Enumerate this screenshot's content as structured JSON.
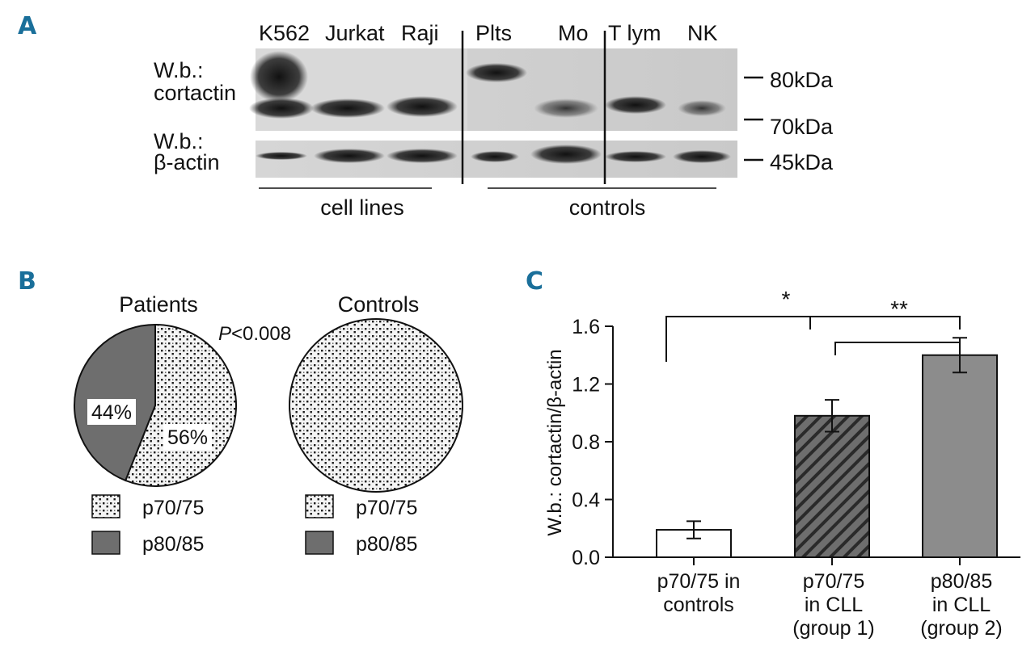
{
  "panels": {
    "a": {
      "letter": "A",
      "lanes": [
        "K562",
        "Jurkat",
        "Raji",
        "Plts",
        "Mo",
        "T lym",
        "NK"
      ],
      "blot_labels": {
        "cortactin_line1": "W.b.:",
        "cortactin_line2": "cortactin",
        "actin_line1": "W.b.:",
        "actin_line2": "β-actin"
      },
      "markers": [
        "80kDa",
        "70kDa",
        "45kDa"
      ],
      "groups": [
        "cell lines",
        "controls"
      ]
    },
    "b": {
      "letter": "B",
      "p_value_label": "P",
      "p_value_rest": "<0.008",
      "legend": [
        "p70/75",
        "p80/85"
      ],
      "colors": {
        "p70_75": "#f2f2f2",
        "p80_85": "#6e6e6e"
      }
    },
    "c": {
      "letter": "C",
      "significance": [
        "*",
        "**"
      ]
    }
  },
  "chart_data": [
    {
      "type": "pie",
      "title": "Patients",
      "labels": [
        "p70/75",
        "p80/85"
      ],
      "values": [
        56,
        44
      ],
      "value_labels": [
        "56%",
        "44%"
      ]
    },
    {
      "type": "pie",
      "title": "Controls",
      "labels": [
        "p70/75",
        "p80/85"
      ],
      "values": [
        100,
        0
      ]
    },
    {
      "type": "bar",
      "categories": [
        [
          "p70/75 in",
          "controls"
        ],
        [
          "p70/75",
          "in CLL",
          "(group 1)"
        ],
        [
          "p80/85",
          "in CLL",
          "(group 2)"
        ]
      ],
      "values": [
        0.19,
        0.98,
        1.4
      ],
      "errors": [
        0.06,
        0.11,
        0.12
      ],
      "ylabel": "W.b.: cortactin/β-actin",
      "ylim": [
        0.0,
        1.6
      ],
      "yticks": [
        "0.0",
        "0.4",
        "0.8",
        "1.2",
        "1.6"
      ],
      "bar_colors": [
        "#ffffff",
        "#6e6e6e",
        "#8c8c8c"
      ],
      "grid": false
    }
  ]
}
